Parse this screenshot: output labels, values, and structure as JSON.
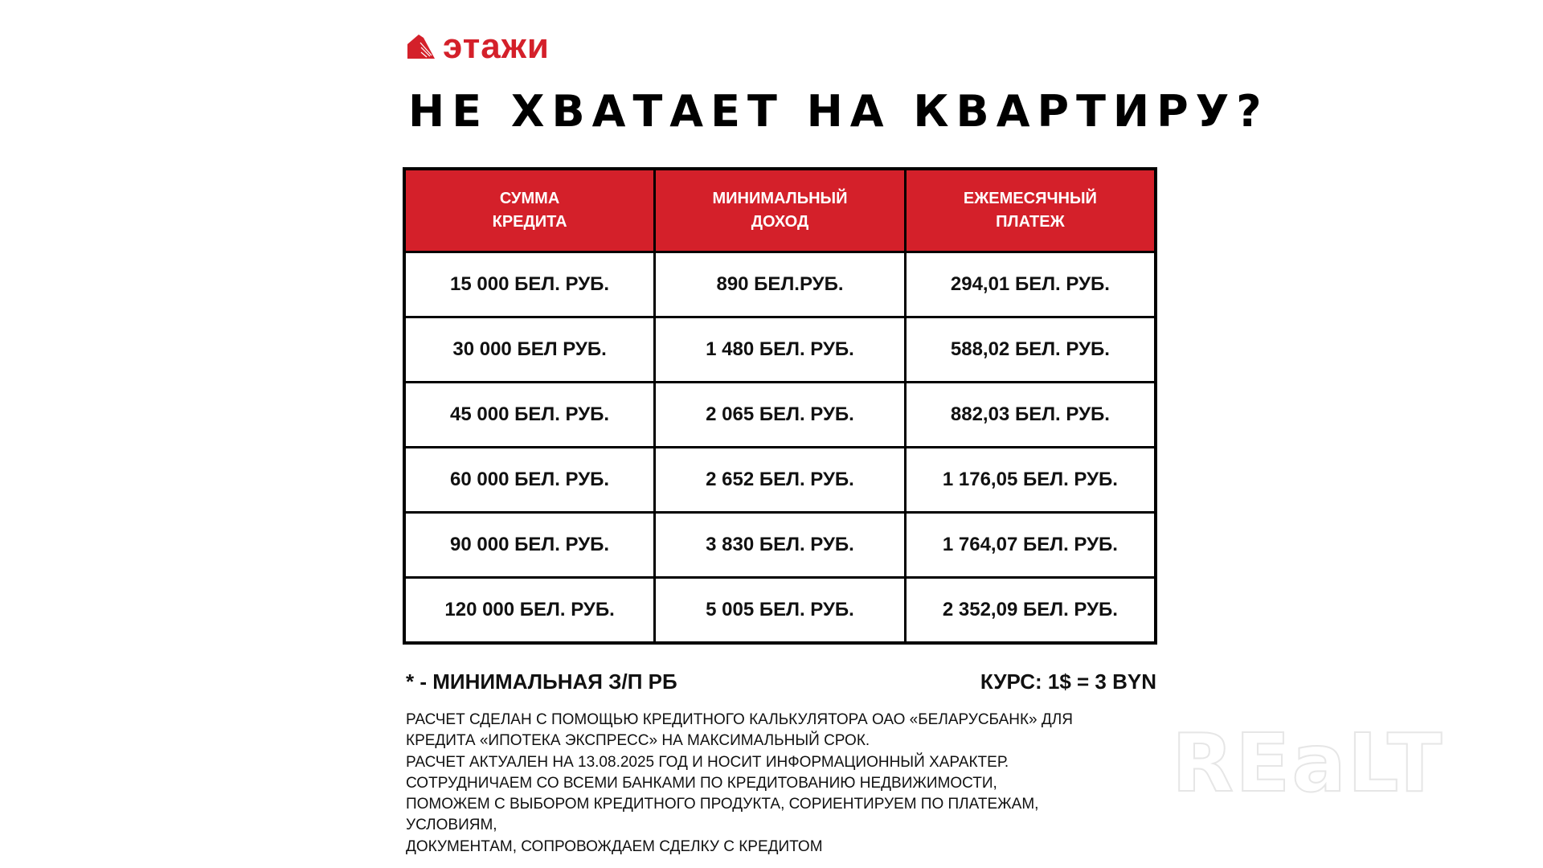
{
  "logo": {
    "text": "этажи",
    "color": "#d4202a"
  },
  "title": "НЕ ХВАТАЕТ НА КВАРТИРУ?",
  "table": {
    "header_color": "#d4202a",
    "headers": [
      [
        "СУММА",
        "КРЕДИТА"
      ],
      [
        "МИНИМАЛЬНЫЙ",
        "ДОХОД"
      ],
      [
        "ЕЖЕМЕСЯЧНЫЙ",
        "ПЛАТЕЖ"
      ]
    ],
    "rows": [
      [
        "15 000 БЕЛ. РУБ.",
        "890 БЕЛ.РУБ.",
        "294,01 БЕЛ. РУБ."
      ],
      [
        "30 000 БЕЛ РУБ.",
        "1 480 БЕЛ. РУБ.",
        "588,02 БЕЛ. РУБ."
      ],
      [
        "45 000 БЕЛ. РУБ.",
        "2 065 БЕЛ. РУБ.",
        "882,03 БЕЛ. РУБ."
      ],
      [
        "60 000 БЕЛ. РУБ.",
        "2 652 БЕЛ. РУБ.",
        "1 176,05 БЕЛ. РУБ."
      ],
      [
        "90 000 БЕЛ. РУБ.",
        "3 830 БЕЛ. РУБ.",
        "1 764,07 БЕЛ. РУБ."
      ],
      [
        "120 000 БЕЛ. РУБ.",
        "5 005 БЕЛ. РУБ.",
        "2 352,09 БЕЛ. РУБ."
      ]
    ]
  },
  "footnote": "* - МИНИМАЛЬНАЯ З/П РБ",
  "rate": "КУРС: 1$ = 3 BYN",
  "body_lines": [
    "РАСЧЕТ СДЕЛАН С ПОМОЩЬЮ КРЕДИТНОГО КАЛЬКУЛЯТОРА ОАО «БЕЛАРУСБАНК» ДЛЯ",
    "КРЕДИТА «ИПОТЕКА ЭКСПРЕСС» НА МАКСИМАЛЬНЫЙ СРОК.",
    "РАСЧЕТ АКТУАЛЕН НА 13.08.2025 ГОД И НОСИТ ИНФОРМАЦИОННЫЙ ХАРАКТЕР.",
    "СОТРУДНИЧАЕМ СО ВСЕМИ БАНКАМИ ПО КРЕДИТОВАНИЮ НЕДВИЖИМОСТИ,",
    "ПОМОЖЕМ С ВЫБОРОМ КРЕДИТНОГО ПРОДУКТА, СОРИЕНТИРУЕМ ПО ПЛАТЕЖАМ,",
    "УСЛОВИЯМ,",
    "ДОКУМЕНТАМ, СОПРОВОЖДАЕМ СДЕЛКУ С КРЕДИТОМ"
  ],
  "watermark": "REaLT"
}
